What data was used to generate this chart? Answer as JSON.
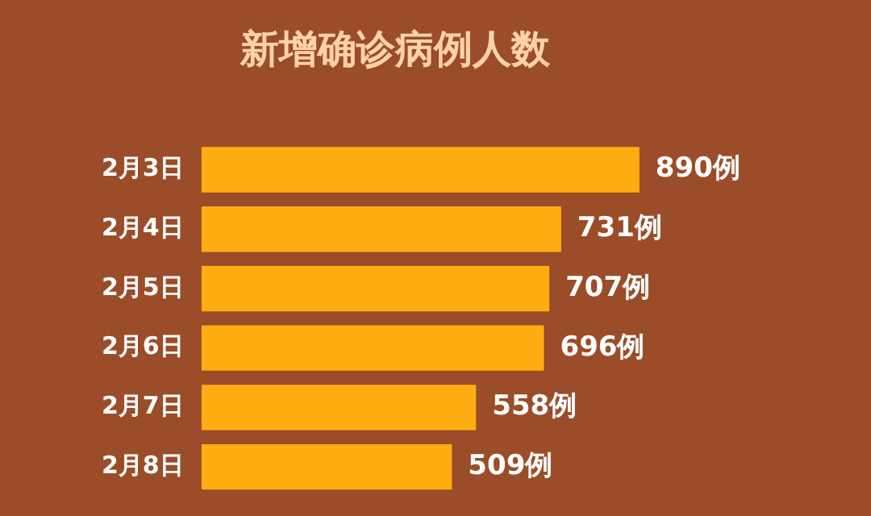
{
  "chart_data": {
    "type": "bar",
    "orientation": "horizontal",
    "title": "新增确诊病例人数",
    "categories": [
      "2月3日",
      "2月4日",
      "2月5日",
      "2月6日",
      "2月7日",
      "2月8日"
    ],
    "values": [
      890,
      731,
      707,
      696,
      558,
      509
    ],
    "value_labels": [
      "890例",
      "731例",
      "707例",
      "696例",
      "558例",
      "509例"
    ],
    "color": "#ffad12",
    "legend": false,
    "tick_labels": "y"
  }
}
